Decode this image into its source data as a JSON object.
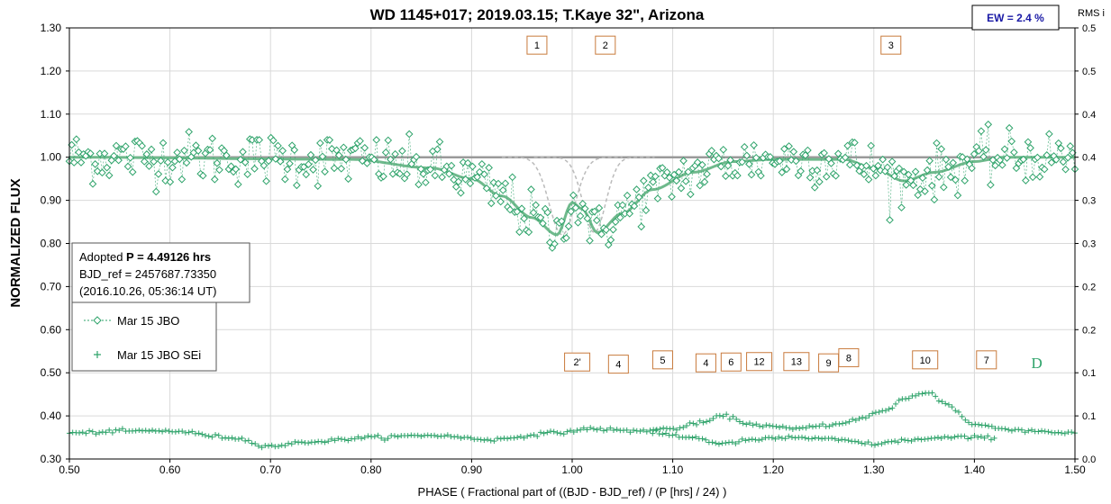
{
  "chart_data": {
    "type": "scatter",
    "title": "WD 1145+017; 2019.03.15; T.Kaye 32\",  Arizona",
    "xlabel": "PHASE ( Fractional part of ((BJD - BJD_ref) / (P [hrs] / 24) )",
    "ylabel": "NORMALIZED FLUX",
    "y2label": "RMS i",
    "xlim": [
      0.5,
      1.5
    ],
    "ylim": [
      0.3,
      1.3
    ],
    "y2lim": [
      0.0,
      0.5
    ],
    "xticks": [
      "0.50",
      "0.60",
      "0.70",
      "0.80",
      "0.90",
      "1.00",
      "1.10",
      "1.20",
      "1.30",
      "1.40",
      "1.50"
    ],
    "yticks": [
      "0.30",
      "0.40",
      "0.50",
      "0.60",
      "0.70",
      "0.80",
      "0.90",
      "1.00",
      "1.10",
      "1.20",
      "1.30"
    ],
    "y2ticks": [
      "0.0",
      "0.1",
      "0.1",
      "0.2",
      "0.2",
      "0.3",
      "0.3",
      "0.4",
      "0.4",
      "0.5",
      "0.5"
    ],
    "grid": true,
    "legend_position": "left",
    "colors": {
      "series": "#2ea36a",
      "model": "#6fb98c",
      "baseline": "#9a9a9a",
      "dip_box": "#c87a3c",
      "ew": "#1a1aa6"
    },
    "info_box": {
      "line1_prefix": "Adopted ",
      "line1_bold": "P = 4.49126 hrs",
      "line2": "BJD_ref = 2457687.73350",
      "line3": "(2016.10.26, 05:36:14 UT)"
    },
    "ew_label": "EW =  2.4 %",
    "series": [
      {
        "name": "Mar 15 JBO",
        "marker": "diamond",
        "noise_level": 0.03,
        "model_anchors": [
          [
            0.5,
            1.0
          ],
          [
            0.78,
            0.995
          ],
          [
            0.86,
            0.975
          ],
          [
            0.9,
            0.95
          ],
          [
            0.93,
            0.91
          ],
          [
            0.96,
            0.86
          ],
          [
            0.985,
            0.82
          ],
          [
            1.0,
            0.895
          ],
          [
            1.01,
            0.88
          ],
          [
            1.025,
            0.825
          ],
          [
            1.05,
            0.87
          ],
          [
            1.08,
            0.925
          ],
          [
            1.12,
            0.965
          ],
          [
            1.16,
            0.99
          ],
          [
            1.2,
            0.995
          ],
          [
            1.27,
            0.995
          ],
          [
            1.3,
            0.975
          ],
          [
            1.33,
            0.945
          ],
          [
            1.36,
            0.965
          ],
          [
            1.4,
            0.99
          ],
          [
            1.43,
            1.0
          ],
          [
            1.5,
            1.0
          ]
        ]
      },
      {
        "name": "Mar 15 JBO SEi",
        "marker": "plus",
        "track_anchors": [
          [
            0.5,
            0.36
          ],
          [
            0.56,
            0.365
          ],
          [
            0.6,
            0.365
          ],
          [
            0.66,
            0.35
          ],
          [
            0.7,
            0.33
          ],
          [
            0.74,
            0.34
          ],
          [
            0.8,
            0.35
          ],
          [
            0.86,
            0.355
          ],
          [
            0.92,
            0.345
          ],
          [
            0.98,
            0.36
          ],
          [
            1.02,
            0.37
          ],
          [
            1.06,
            0.365
          ],
          [
            1.1,
            0.37
          ],
          [
            1.13,
            0.385
          ],
          [
            1.15,
            0.4
          ],
          [
            1.18,
            0.38
          ],
          [
            1.22,
            0.37
          ],
          [
            1.26,
            0.38
          ],
          [
            1.28,
            0.39
          ],
          [
            1.31,
            0.41
          ],
          [
            1.33,
            0.44
          ],
          [
            1.355,
            0.455
          ],
          [
            1.37,
            0.43
          ],
          [
            1.4,
            0.38
          ],
          [
            1.43,
            0.37
          ],
          [
            1.46,
            0.365
          ],
          [
            1.5,
            0.36
          ]
        ],
        "lower_anchors": [
          [
            1.08,
            0.36
          ],
          [
            1.12,
            0.35
          ],
          [
            1.15,
            0.335
          ],
          [
            1.18,
            0.345
          ],
          [
            1.22,
            0.35
          ],
          [
            1.26,
            0.345
          ],
          [
            1.3,
            0.335
          ],
          [
            1.34,
            0.345
          ],
          [
            1.38,
            0.35
          ],
          [
            1.42,
            0.35
          ]
        ]
      }
    ],
    "dip_labels_top": [
      {
        "label": "1",
        "x": 0.965,
        "y": 1.26
      },
      {
        "label": "2",
        "x": 1.033,
        "y": 1.26
      },
      {
        "label": "3",
        "x": 1.317,
        "y": 1.26
      }
    ],
    "dip_labels_bottom": [
      {
        "label": "2'",
        "x": 1.005,
        "y": 0.525
      },
      {
        "label": "4",
        "x": 1.046,
        "y": 0.52
      },
      {
        "label": "5",
        "x": 1.09,
        "y": 0.53
      },
      {
        "label": "4",
        "x": 1.133,
        "y": 0.523
      },
      {
        "label": "6",
        "x": 1.158,
        "y": 0.525
      },
      {
        "label": "12",
        "x": 1.186,
        "y": 0.526
      },
      {
        "label": "13",
        "x": 1.223,
        "y": 0.526
      },
      {
        "label": "9",
        "x": 1.255,
        "y": 0.523
      },
      {
        "label": "8",
        "x": 1.275,
        "y": 0.535
      },
      {
        "label": "10",
        "x": 1.351,
        "y": 0.53
      },
      {
        "label": "7",
        "x": 1.412,
        "y": 0.53
      }
    ],
    "d_label": {
      "label": "D",
      "x": 1.462,
      "y": 0.523
    }
  }
}
